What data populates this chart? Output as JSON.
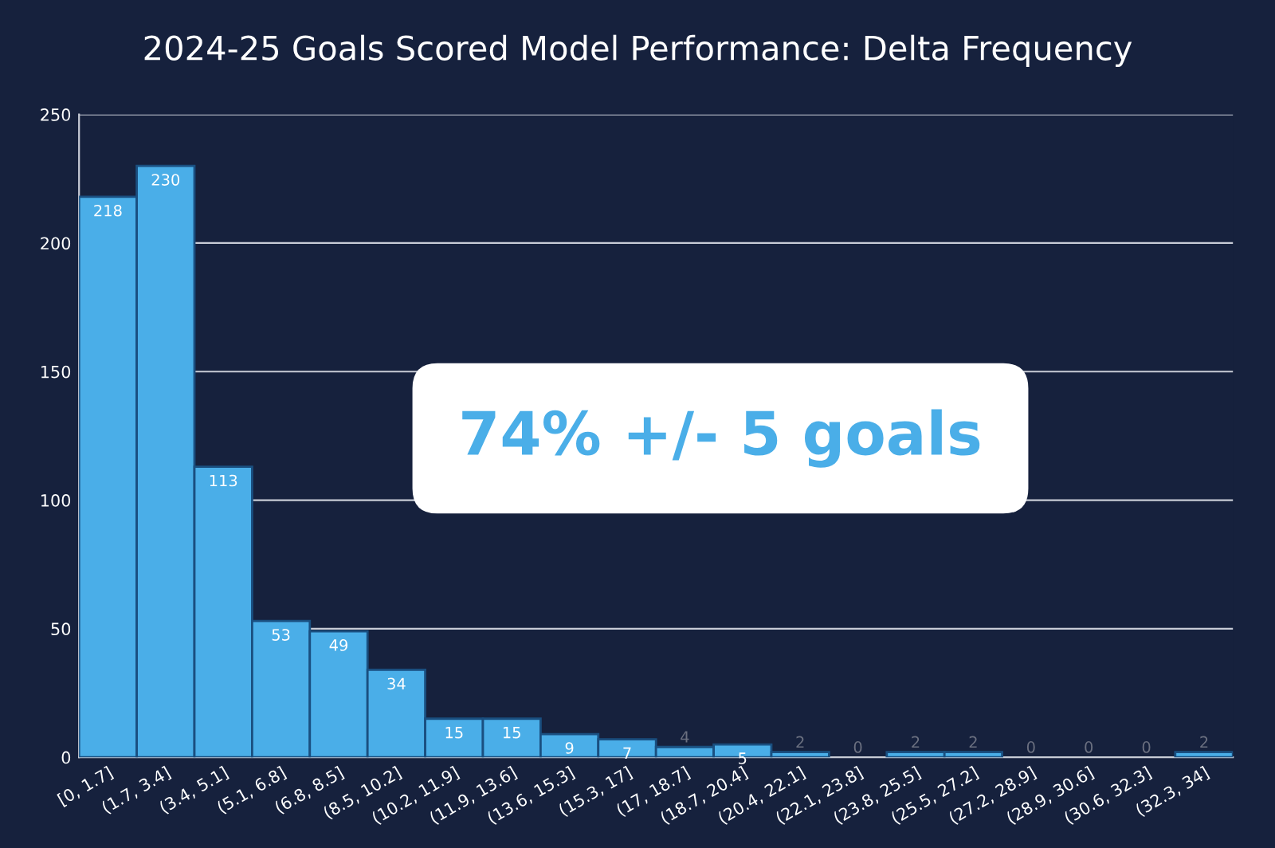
{
  "chart_data": {
    "type": "bar",
    "title": "2024-25 Goals Scored Model Performance: Delta Frequency",
    "categories": [
      "[0, 1.7]",
      "(1.7, 3.4]",
      "(3.4, 5.1]",
      "(5.1, 6.8]",
      "(6.8, 8.5]",
      "(8.5, 10.2]",
      "(10.2, 11.9]",
      "(11.9, 13.6]",
      "(13.6, 15.3]",
      "(15.3, 17]",
      "(17, 18.7]",
      "(18.7, 20.4]",
      "(20.4, 22.1]",
      "(22.1, 23.8]",
      "(23.8, 25.5]",
      "(25.5, 27.2]",
      "(27.2, 28.9]",
      "(28.9, 30.6]",
      "(30.6, 32.3]",
      "(32.3, 34]"
    ],
    "values": [
      218,
      230,
      113,
      53,
      49,
      34,
      15,
      15,
      9,
      7,
      4,
      5,
      2,
      0,
      2,
      2,
      0,
      0,
      0,
      2
    ],
    "color": "#4aaee8",
    "ylim": [
      0,
      250
    ],
    "yticks": [
      0,
      50,
      100,
      150,
      200,
      250
    ],
    "grid": "y",
    "data_labels": true,
    "annotations": [
      "74% +/- 5 goals"
    ]
  }
}
